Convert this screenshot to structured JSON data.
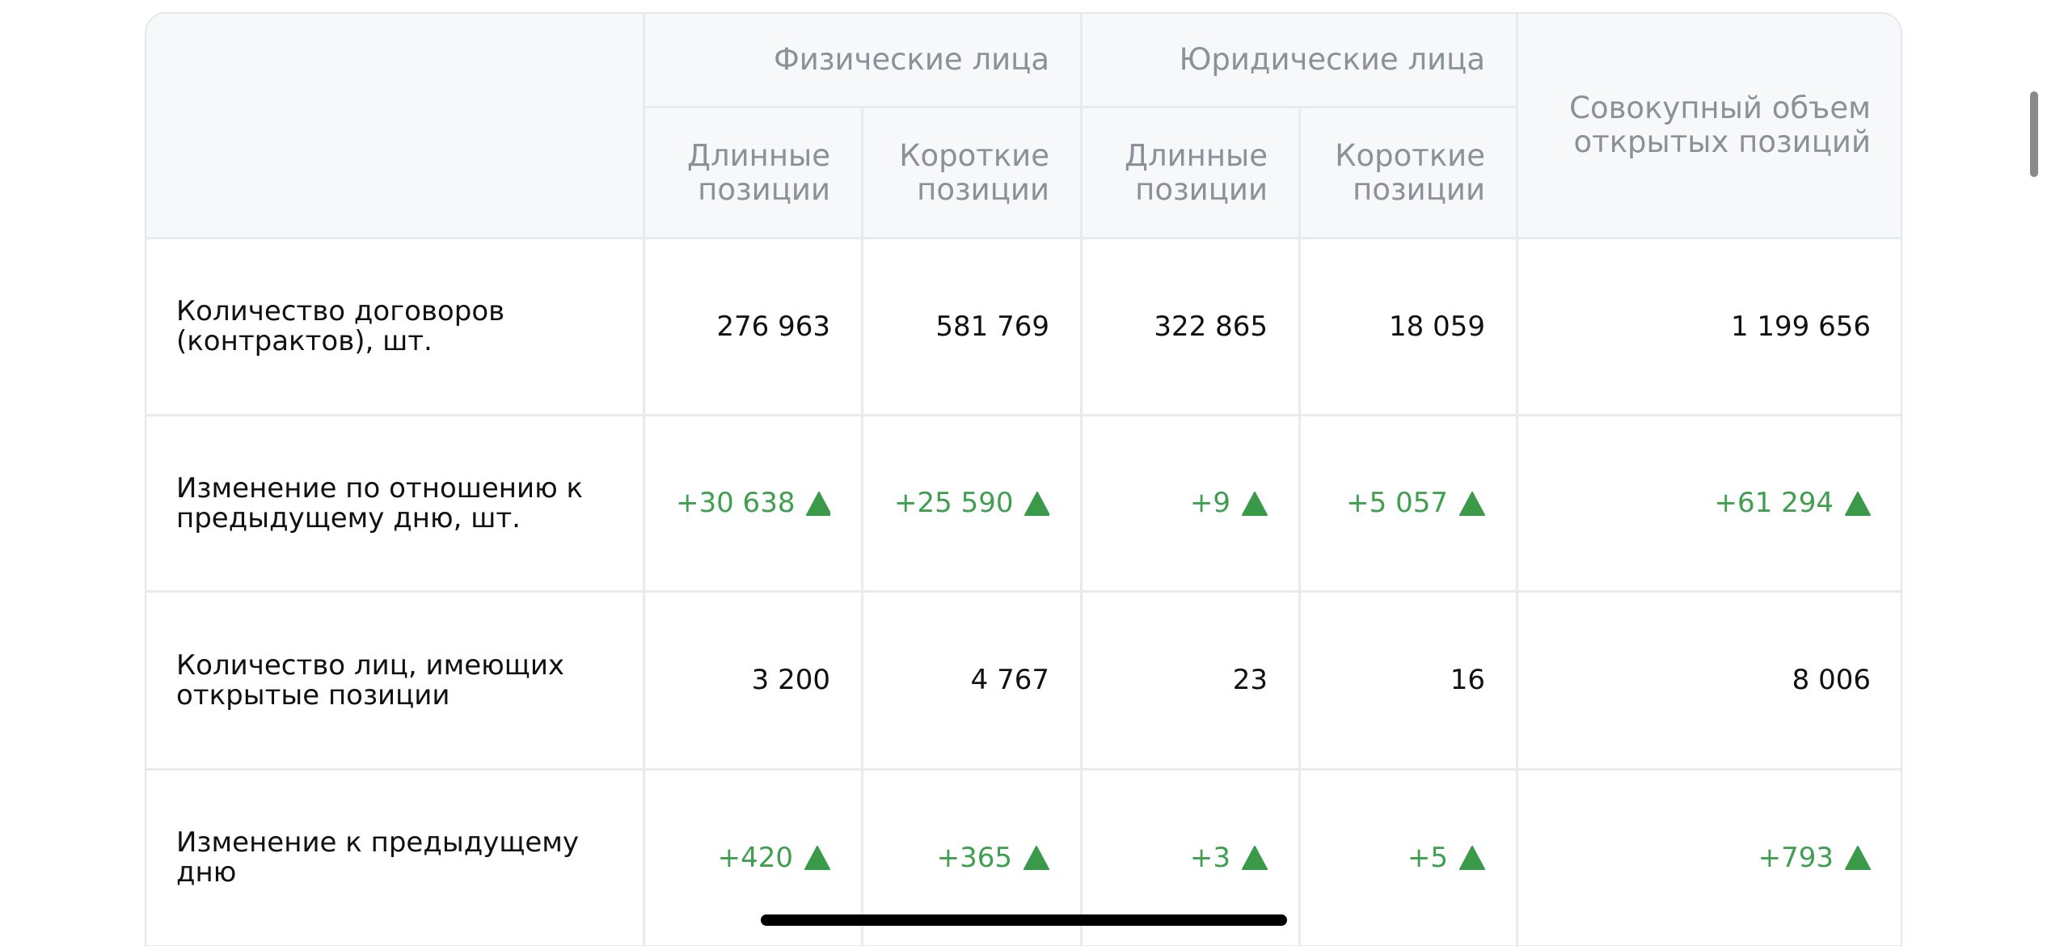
{
  "table": {
    "header": {
      "groups": [
        "Физические лица",
        "Юридические лица"
      ],
      "subheaders": [
        [
          "Длинные",
          "позиции"
        ],
        [
          "Короткие",
          "позиции"
        ],
        [
          "Длинные",
          "позиции"
        ],
        [
          "Короткие",
          "позиции"
        ]
      ],
      "total": [
        "Совокупный объем",
        "открытых позиций"
      ]
    },
    "rows": [
      {
        "label": [
          "Количество договоров",
          "(контрактов), шт."
        ],
        "change": false,
        "values": [
          "276 963",
          "581 769",
          "322 865",
          "18 059",
          "1 199 656"
        ]
      },
      {
        "label": [
          "Изменение по отношению к",
          "предыдущему дню, шт."
        ],
        "change": true,
        "values": [
          "+30 638",
          "+25 590",
          "+9",
          "+5 057",
          "+61 294"
        ]
      },
      {
        "label": [
          "Количество лиц, имеющих",
          "открытые позиции"
        ],
        "change": false,
        "values": [
          "3 200",
          "4 767",
          "23",
          "16",
          "8 006"
        ]
      },
      {
        "label": [
          "Изменение к предыдущему",
          "дню"
        ],
        "change": true,
        "values": [
          "+420",
          "+365",
          "+3",
          "+5",
          "+793"
        ]
      }
    ]
  }
}
